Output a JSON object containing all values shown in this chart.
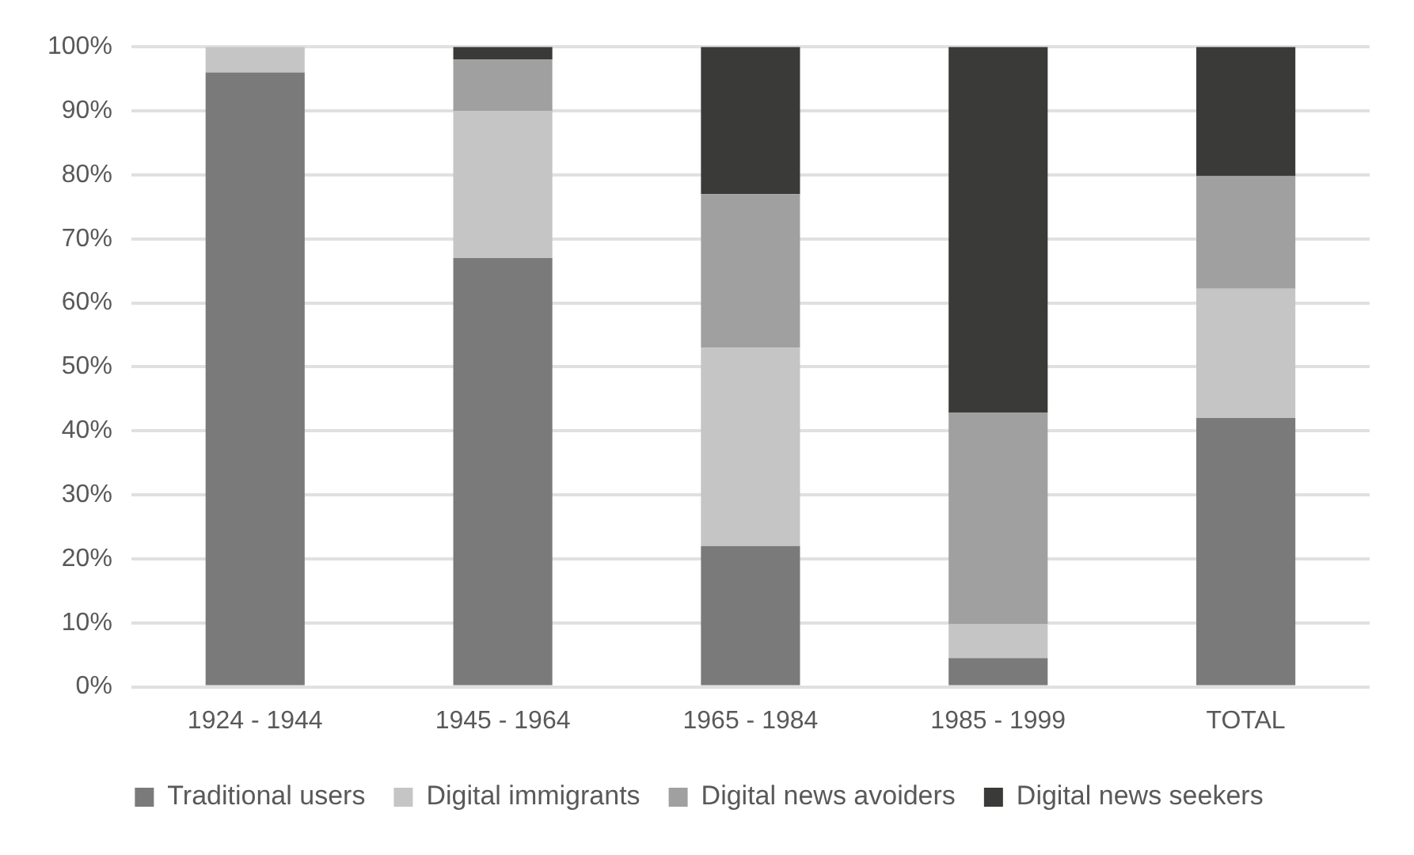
{
  "chart_data": {
    "type": "bar",
    "stacked": true,
    "categories": [
      "1924 - 1944",
      "1945 - 1964",
      "1965 - 1984",
      "1985 - 1999",
      "TOTAL"
    ],
    "series": [
      {
        "name": "Traditional users",
        "color": "#7a7a7a",
        "values": [
          96,
          67,
          22,
          4.5,
          42
        ]
      },
      {
        "name": "Digital immigrants",
        "color": "#c4c5c4",
        "values": [
          4,
          23,
          31,
          5.3,
          20.2
        ]
      },
      {
        "name": "Digital news avoiders",
        "color": "#a0a0a0",
        "values": [
          0,
          8,
          24,
          33,
          17.6
        ]
      },
      {
        "name": "Digital news seekers",
        "color": "#3a3a38",
        "values": [
          0,
          2,
          23,
          57.2,
          20.2
        ]
      }
    ],
    "ylim": [
      0,
      100
    ],
    "yticks": [
      {
        "value": 0,
        "label": "0%"
      },
      {
        "value": 10,
        "label": "10%"
      },
      {
        "value": 20,
        "label": "20%"
      },
      {
        "value": 30,
        "label": "30%"
      },
      {
        "value": 40,
        "label": "40%"
      },
      {
        "value": 50,
        "label": "50%"
      },
      {
        "value": 60,
        "label": "60%"
      },
      {
        "value": 70,
        "label": "70%"
      },
      {
        "value": 80,
        "label": "80%"
      },
      {
        "value": 90,
        "label": "90%"
      },
      {
        "value": 100,
        "label": "100%"
      }
    ],
    "grid": "y",
    "legend": "bottom"
  }
}
